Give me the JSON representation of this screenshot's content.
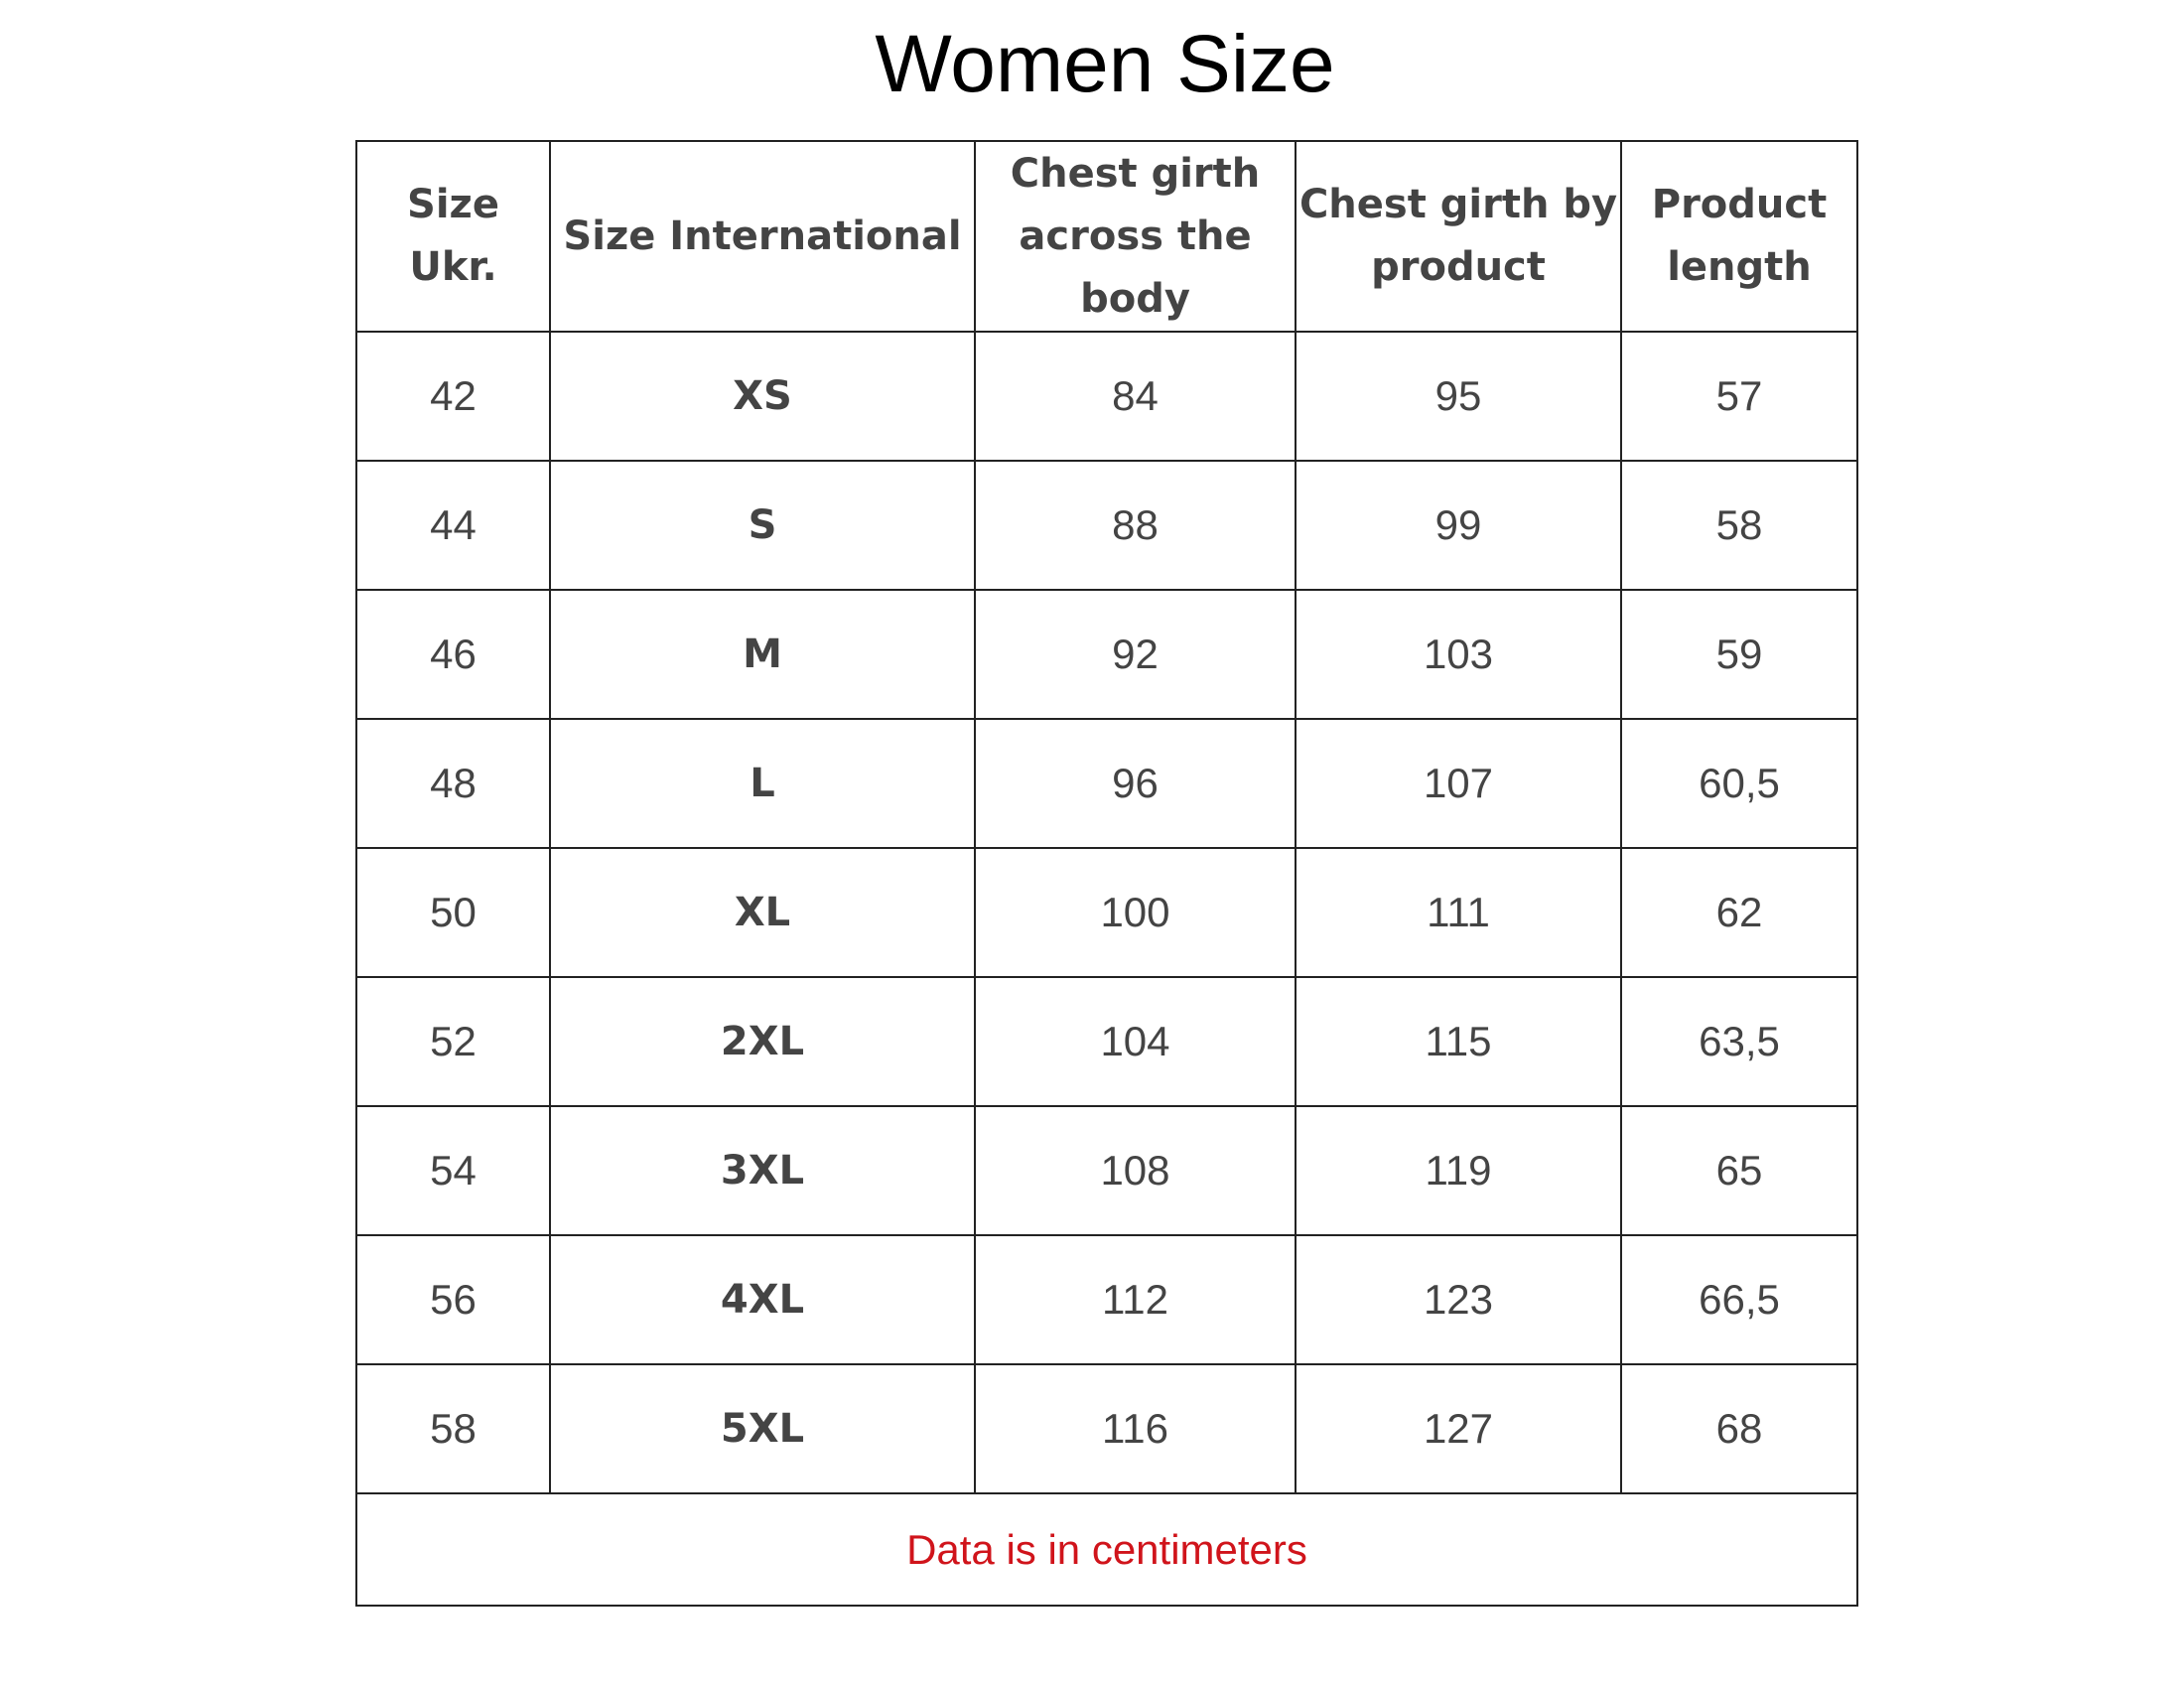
{
  "header": {
    "title": "Women Size"
  },
  "table": {
    "columns": [
      "Size Ukr.",
      "Size International",
      "Chest girth across the body",
      "Chest girth by product",
      "Product length"
    ],
    "rows": [
      [
        42,
        "XS",
        84,
        95,
        57
      ],
      [
        44,
        "S",
        88,
        99,
        58
      ],
      [
        46,
        "M",
        92,
        103,
        59
      ],
      [
        48,
        "L",
        96,
        107,
        "60,5"
      ],
      [
        50,
        "XL",
        100,
        111,
        62
      ],
      [
        52,
        "2XL",
        104,
        115,
        "63,5"
      ],
      [
        54,
        "3XL",
        108,
        119,
        65
      ],
      [
        56,
        "4XL",
        112,
        123,
        "66,5"
      ],
      [
        58,
        "5XL",
        116,
        127,
        68
      ]
    ],
    "note": "Data is in centimeters"
  }
}
